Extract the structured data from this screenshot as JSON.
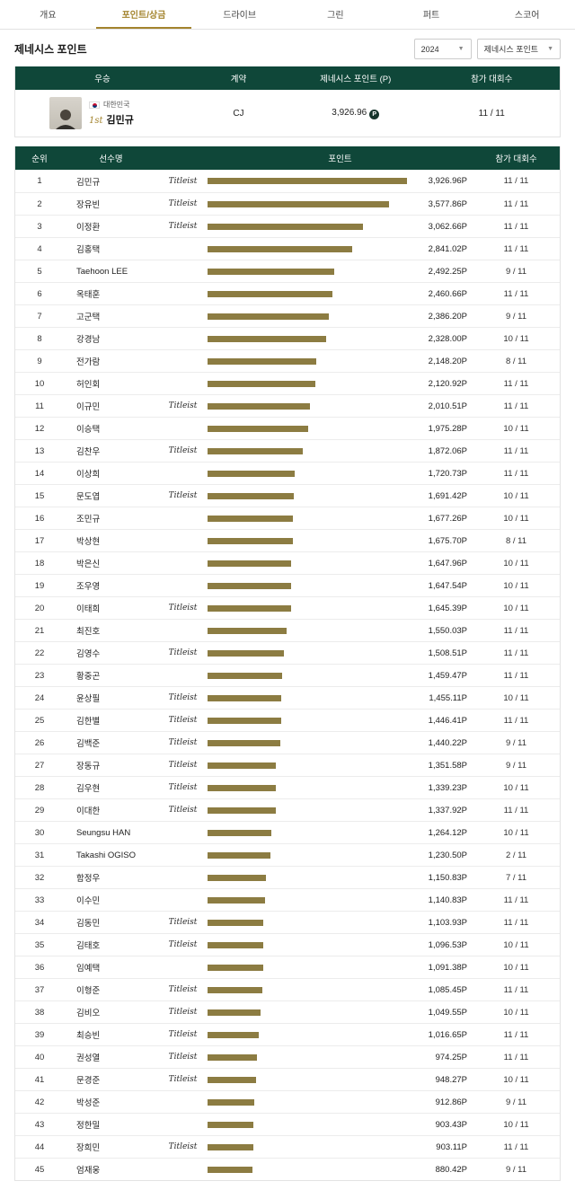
{
  "colors": {
    "header_green": "#0f4739",
    "bar_gold": "#8c7c42",
    "accent_gold": "#a3842e"
  },
  "tabs": [
    {
      "label": "개요",
      "active": false
    },
    {
      "label": "포인트/상금",
      "active": true
    },
    {
      "label": "드라이브",
      "active": false
    },
    {
      "label": "그린",
      "active": false
    },
    {
      "label": "퍼트",
      "active": false
    },
    {
      "label": "스코어",
      "active": false
    }
  ],
  "page": {
    "title": "제네시스 포인트"
  },
  "filters": {
    "year": "2024",
    "category": "제네시스 포인트"
  },
  "winner_table": {
    "headers": [
      "우승",
      "계약",
      "제네시스 포인트 (P)",
      "참가 대회수"
    ],
    "row": {
      "country": "대한민국",
      "rank_label": "1st",
      "name": "김민규",
      "contract": "CJ",
      "points": "3,926.96",
      "points_badge": "P",
      "participation": "11 / 11"
    }
  },
  "ranking_table": {
    "headers": [
      "순위",
      "선수명",
      "포인트",
      "참가 대회수"
    ],
    "max_points": 3926.96,
    "rows": [
      {
        "rank": 1,
        "name": "김민규",
        "brand": "Titleist",
        "points": 3926.96,
        "points_label": "3,926.96P",
        "participation": "11 / 11"
      },
      {
        "rank": 2,
        "name": "장유빈",
        "brand": "Titleist",
        "points": 3577.86,
        "points_label": "3,577.86P",
        "participation": "11 / 11"
      },
      {
        "rank": 3,
        "name": "이정환",
        "brand": "Titleist",
        "points": 3062.66,
        "points_label": "3,062.66P",
        "participation": "11 / 11"
      },
      {
        "rank": 4,
        "name": "김홍택",
        "brand": "",
        "points": 2841.02,
        "points_label": "2,841.02P",
        "participation": "11 / 11"
      },
      {
        "rank": 5,
        "name": "Taehoon LEE",
        "brand": "",
        "points": 2492.25,
        "points_label": "2,492.25P",
        "participation": "9 / 11"
      },
      {
        "rank": 6,
        "name": "옥태훈",
        "brand": "",
        "points": 2460.66,
        "points_label": "2,460.66P",
        "participation": "11 / 11"
      },
      {
        "rank": 7,
        "name": "고군택",
        "brand": "",
        "points": 2386.2,
        "points_label": "2,386.20P",
        "participation": "9 / 11"
      },
      {
        "rank": 8,
        "name": "강경남",
        "brand": "",
        "points": 2328.0,
        "points_label": "2,328.00P",
        "participation": "10 / 11"
      },
      {
        "rank": 9,
        "name": "전가람",
        "brand": "",
        "points": 2148.2,
        "points_label": "2,148.20P",
        "participation": "8 / 11"
      },
      {
        "rank": 10,
        "name": "허인회",
        "brand": "",
        "points": 2120.92,
        "points_label": "2,120.92P",
        "participation": "11 / 11"
      },
      {
        "rank": 11,
        "name": "이규민",
        "brand": "Titleist",
        "points": 2010.51,
        "points_label": "2,010.51P",
        "participation": "11 / 11"
      },
      {
        "rank": 12,
        "name": "이승택",
        "brand": "",
        "points": 1975.28,
        "points_label": "1,975.28P",
        "participation": "10 / 11"
      },
      {
        "rank": 13,
        "name": "김찬우",
        "brand": "Titleist",
        "points": 1872.06,
        "points_label": "1,872.06P",
        "participation": "11 / 11"
      },
      {
        "rank": 14,
        "name": "이상희",
        "brand": "",
        "points": 1720.73,
        "points_label": "1,720.73P",
        "participation": "11 / 11"
      },
      {
        "rank": 15,
        "name": "문도엽",
        "brand": "Titleist",
        "points": 1691.42,
        "points_label": "1,691.42P",
        "participation": "10 / 11"
      },
      {
        "rank": 16,
        "name": "조민규",
        "brand": "",
        "points": 1677.26,
        "points_label": "1,677.26P",
        "participation": "10 / 11"
      },
      {
        "rank": 17,
        "name": "박상현",
        "brand": "",
        "points": 1675.7,
        "points_label": "1,675.70P",
        "participation": "8 / 11"
      },
      {
        "rank": 18,
        "name": "박은신",
        "brand": "",
        "points": 1647.96,
        "points_label": "1,647.96P",
        "participation": "10 / 11"
      },
      {
        "rank": 19,
        "name": "조우영",
        "brand": "",
        "points": 1647.54,
        "points_label": "1,647.54P",
        "participation": "10 / 11"
      },
      {
        "rank": 20,
        "name": "이태희",
        "brand": "Titleist",
        "points": 1645.39,
        "points_label": "1,645.39P",
        "participation": "10 / 11"
      },
      {
        "rank": 21,
        "name": "최진호",
        "brand": "",
        "points": 1550.03,
        "points_label": "1,550.03P",
        "participation": "11 / 11"
      },
      {
        "rank": 22,
        "name": "김영수",
        "brand": "Titleist",
        "points": 1508.51,
        "points_label": "1,508.51P",
        "participation": "11 / 11"
      },
      {
        "rank": 23,
        "name": "황중곤",
        "brand": "",
        "points": 1459.47,
        "points_label": "1,459.47P",
        "participation": "11 / 11"
      },
      {
        "rank": 24,
        "name": "윤상필",
        "brand": "Titleist",
        "points": 1455.11,
        "points_label": "1,455.11P",
        "participation": "10 / 11"
      },
      {
        "rank": 25,
        "name": "김한별",
        "brand": "Titleist",
        "points": 1446.41,
        "points_label": "1,446.41P",
        "participation": "11 / 11"
      },
      {
        "rank": 26,
        "name": "김백준",
        "brand": "Titleist",
        "points": 1440.22,
        "points_label": "1,440.22P",
        "participation": "9 / 11"
      },
      {
        "rank": 27,
        "name": "장동규",
        "brand": "Titleist",
        "points": 1351.58,
        "points_label": "1,351.58P",
        "participation": "9 / 11"
      },
      {
        "rank": 28,
        "name": "김우현",
        "brand": "Titleist",
        "points": 1339.23,
        "points_label": "1,339.23P",
        "participation": "10 / 11"
      },
      {
        "rank": 29,
        "name": "이대한",
        "brand": "Titleist",
        "points": 1337.92,
        "points_label": "1,337.92P",
        "participation": "11 / 11"
      },
      {
        "rank": 30,
        "name": "Seungsu HAN",
        "brand": "",
        "points": 1264.12,
        "points_label": "1,264.12P",
        "participation": "10 / 11"
      },
      {
        "rank": 31,
        "name": "Takashi OGISO",
        "brand": "",
        "points": 1230.5,
        "points_label": "1,230.50P",
        "participation": "2 / 11"
      },
      {
        "rank": 32,
        "name": "함정우",
        "brand": "",
        "points": 1150.83,
        "points_label": "1,150.83P",
        "participation": "7 / 11"
      },
      {
        "rank": 33,
        "name": "이수민",
        "brand": "",
        "points": 1140.83,
        "points_label": "1,140.83P",
        "participation": "11 / 11"
      },
      {
        "rank": 34,
        "name": "김동민",
        "brand": "Titleist",
        "points": 1103.93,
        "points_label": "1,103.93P",
        "participation": "11 / 11"
      },
      {
        "rank": 35,
        "name": "김태호",
        "brand": "Titleist",
        "points": 1096.53,
        "points_label": "1,096.53P",
        "participation": "10 / 11"
      },
      {
        "rank": 36,
        "name": "임예택",
        "brand": "",
        "points": 1091.38,
        "points_label": "1,091.38P",
        "participation": "10 / 11"
      },
      {
        "rank": 37,
        "name": "이형준",
        "brand": "Titleist",
        "points": 1085.45,
        "points_label": "1,085.45P",
        "participation": "11 / 11"
      },
      {
        "rank": 38,
        "name": "김비오",
        "brand": "Titleist",
        "points": 1049.55,
        "points_label": "1,049.55P",
        "participation": "10 / 11"
      },
      {
        "rank": 39,
        "name": "최승빈",
        "brand": "Titleist",
        "points": 1016.65,
        "points_label": "1,016.65P",
        "participation": "11 / 11"
      },
      {
        "rank": 40,
        "name": "권성열",
        "brand": "Titleist",
        "points": 974.25,
        "points_label": "974.25P",
        "participation": "11 / 11"
      },
      {
        "rank": 41,
        "name": "문경준",
        "brand": "Titleist",
        "points": 948.27,
        "points_label": "948.27P",
        "participation": "10 / 11"
      },
      {
        "rank": 42,
        "name": "박성준",
        "brand": "",
        "points": 912.86,
        "points_label": "912.86P",
        "participation": "9 / 11"
      },
      {
        "rank": 43,
        "name": "정한밀",
        "brand": "",
        "points": 903.43,
        "points_label": "903.43P",
        "participation": "10 / 11"
      },
      {
        "rank": 44,
        "name": "장희민",
        "brand": "Titleist",
        "points": 903.11,
        "points_label": "903.11P",
        "participation": "11 / 11"
      },
      {
        "rank": 45,
        "name": "엄재웅",
        "brand": "",
        "points": 880.42,
        "points_label": "880.42P",
        "participation": "9 / 11"
      }
    ]
  }
}
